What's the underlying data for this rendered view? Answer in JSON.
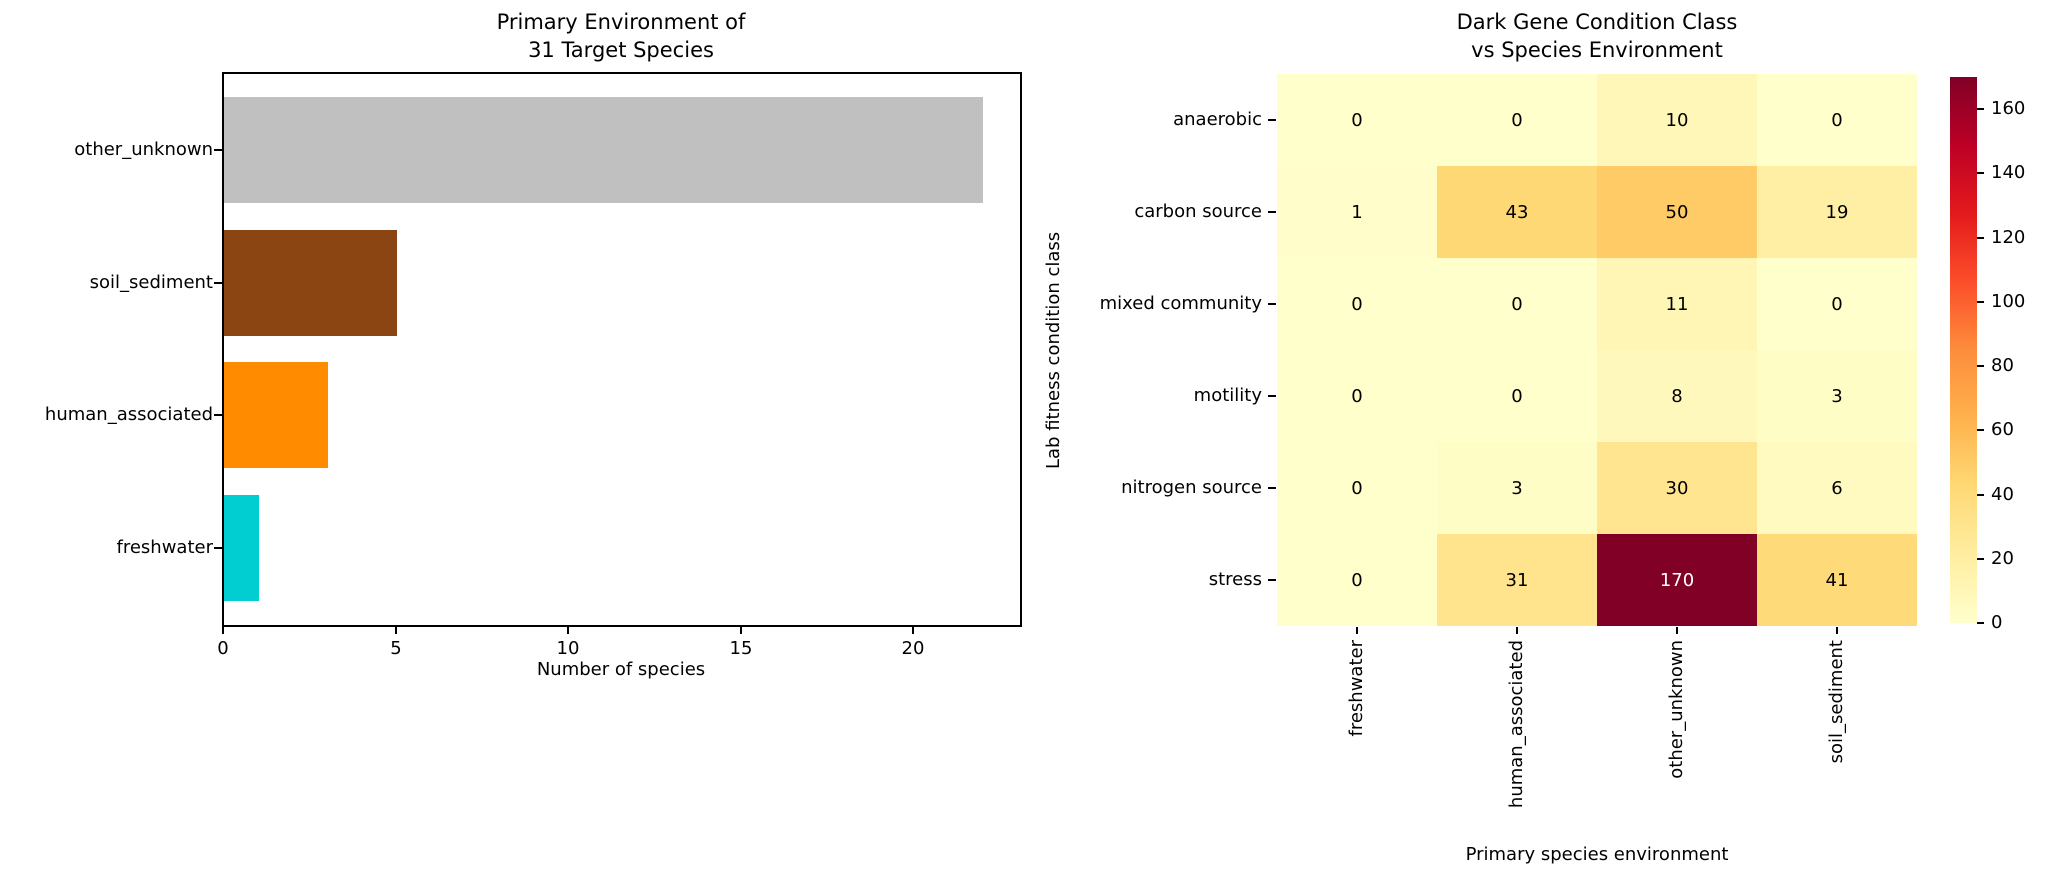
{
  "page": {
    "background": "#ffffff"
  },
  "chart_data": [
    {
      "type": "bar",
      "orientation": "horizontal",
      "title": "Primary Environment of\n31 Target Species",
      "categories": [
        "other_unknown",
        "soil_sediment",
        "human_associated",
        "freshwater"
      ],
      "values": [
        22,
        5,
        3,
        1
      ],
      "bar_colors": [
        "#c0c0c0",
        "#8b4513",
        "#ff8c00",
        "#00ced1"
      ],
      "xlabel": "Number of species",
      "ylabel": "",
      "xticks": [
        0,
        5,
        10,
        15,
        20
      ],
      "xlim": [
        0,
        23.1
      ],
      "grid": false
    },
    {
      "type": "heatmap",
      "title": "Dark Gene Condition Class\nvs Species Environment",
      "rows": [
        "anaerobic",
        "carbon source",
        "mixed community",
        "motility",
        "nitrogen source",
        "stress"
      ],
      "columns": [
        "freshwater",
        "human_associated",
        "other_unknown",
        "soil_sediment"
      ],
      "values": [
        [
          0,
          0,
          10,
          0
        ],
        [
          1,
          43,
          50,
          19
        ],
        [
          0,
          0,
          11,
          0
        ],
        [
          0,
          0,
          8,
          3
        ],
        [
          0,
          3,
          30,
          6
        ],
        [
          0,
          31,
          170,
          41
        ]
      ],
      "cell_colors": [
        [
          "#ffffcc",
          "#ffffcc",
          "#fff7b7",
          "#ffffcc"
        ],
        [
          "#fffeca",
          "#fed875",
          "#fecb67",
          "#ffefa5"
        ],
        [
          "#ffffcc",
          "#ffffcc",
          "#fff6b5",
          "#ffffcc"
        ],
        [
          "#ffffcc",
          "#ffffcc",
          "#fff8bc",
          "#fffdc6"
        ],
        [
          "#ffffcc",
          "#fffdc6",
          "#ffe58f",
          "#fffac0"
        ],
        [
          "#ffffcc",
          "#ffe48d",
          "#800026",
          "#feda79"
        ]
      ],
      "cell_text_colors": [
        [
          "#000000",
          "#000000",
          "#000000",
          "#000000"
        ],
        [
          "#000000",
          "#000000",
          "#000000",
          "#000000"
        ],
        [
          "#000000",
          "#000000",
          "#000000",
          "#000000"
        ],
        [
          "#000000",
          "#000000",
          "#000000",
          "#000000"
        ],
        [
          "#000000",
          "#000000",
          "#000000",
          "#000000"
        ],
        [
          "#000000",
          "#000000",
          "#ffffff",
          "#000000"
        ]
      ],
      "xlabel": "Primary species environment",
      "ylabel": "Lab fitness condition class",
      "colormap": "YlOrRd",
      "colorbar": {
        "vmin": 0,
        "vmax": 170,
        "ticks": [
          0,
          20,
          40,
          60,
          80,
          100,
          120,
          140,
          160
        ]
      },
      "grid": false,
      "legend_position": "right-colorbar"
    }
  ]
}
